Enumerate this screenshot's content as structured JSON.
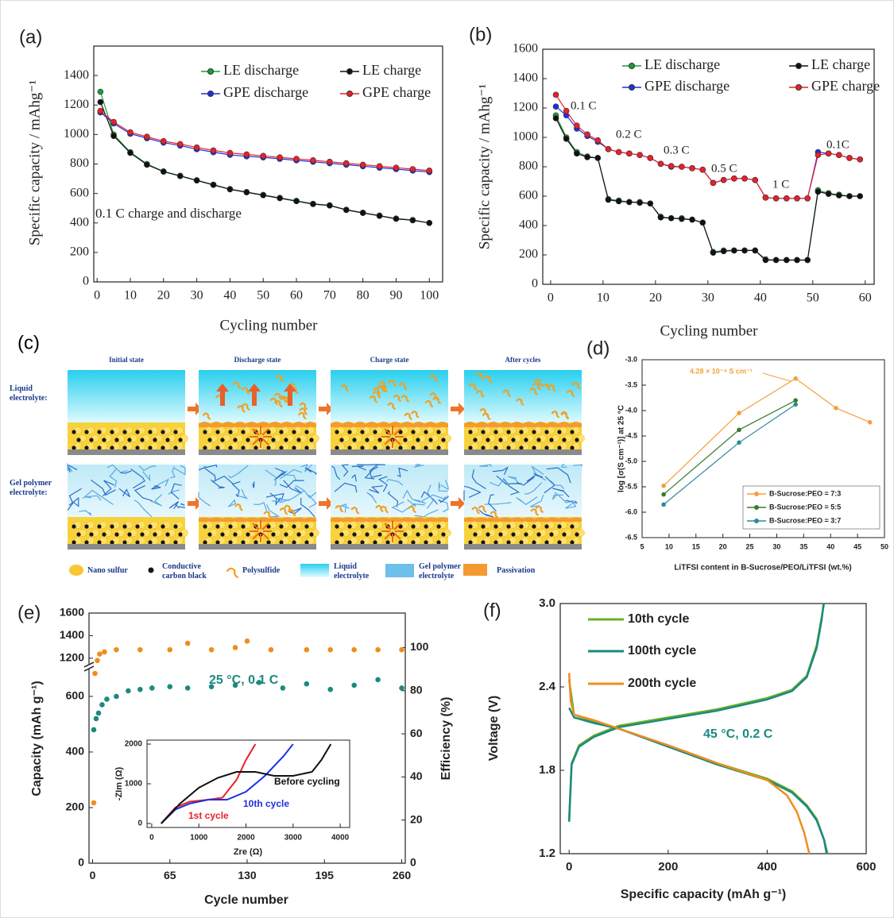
{
  "chart_data": [
    {
      "type": "line",
      "panel_label": "(a)",
      "xlabel": "Cycling number",
      "ylabel": "Specific capacity / mAhg⁻¹",
      "xlim": [
        -1,
        104
      ],
      "xticks": [
        0,
        10,
        20,
        30,
        40,
        50,
        60,
        70,
        80,
        90,
        100
      ],
      "ylim": [
        0,
        1600
      ],
      "yticks": [
        0,
        200,
        400,
        600,
        800,
        1000,
        1200,
        1400
      ],
      "marker": "circle",
      "legend": "upper right",
      "annotations": [
        "0.1 C charge and discharge"
      ],
      "x": [
        1,
        5,
        10,
        15,
        20,
        25,
        30,
        35,
        40,
        45,
        50,
        55,
        60,
        65,
        70,
        75,
        80,
        85,
        90,
        95,
        100
      ],
      "series": [
        {
          "name": "LE discharge",
          "color": "#1a9e3a",
          "values": [
            1290,
            1000,
            880,
            800,
            750,
            720,
            690,
            660,
            630,
            610,
            590,
            570,
            550,
            530,
            520,
            490,
            470,
            450,
            430,
            420,
            400
          ]
        },
        {
          "name": "LE charge",
          "color": "#111111",
          "values": [
            1220,
            990,
            875,
            795,
            748,
            718,
            688,
            658,
            628,
            608,
            588,
            568,
            548,
            528,
            518,
            488,
            468,
            448,
            428,
            418,
            400
          ]
        },
        {
          "name": "GPE discharge",
          "color": "#2030e0",
          "values": [
            1150,
            1075,
            1005,
            975,
            945,
            925,
            900,
            880,
            862,
            852,
            845,
            835,
            825,
            815,
            805,
            795,
            785,
            775,
            765,
            755,
            745
          ]
        },
        {
          "name": "GPE charge",
          "color": "#e8202a",
          "values": [
            1160,
            1085,
            1015,
            985,
            955,
            935,
            912,
            892,
            875,
            865,
            855,
            845,
            835,
            825,
            815,
            805,
            795,
            785,
            775,
            765,
            755
          ]
        }
      ]
    },
    {
      "type": "line",
      "panel_label": "(b)",
      "xlabel": "Cycling number",
      "ylabel": "Specific capacity / mAhg⁻¹",
      "xlim": [
        -1.5,
        61.7
      ],
      "xticks": [
        0,
        10,
        20,
        30,
        40,
        50,
        60
      ],
      "ylim": [
        0,
        1600
      ],
      "yticks": [
        0,
        200,
        400,
        600,
        800,
        1000,
        1200,
        1400,
        1600
      ],
      "marker": "circle",
      "legend": "upper right",
      "annotations": [
        "0.1 C",
        "0.2 C",
        "0.3 C",
        "0.5 C",
        "1 C",
        "0.1C"
      ],
      "x": [
        1,
        3,
        5,
        7,
        9,
        11,
        13,
        15,
        17,
        19,
        21,
        23,
        25,
        27,
        29,
        31,
        33,
        35,
        37,
        39,
        41,
        43,
        45,
        47,
        49,
        51,
        53,
        55,
        57,
        59
      ],
      "series": [
        {
          "name": "LE discharge",
          "color": "#1a9e3a",
          "values": [
            1150,
            1000,
            900,
            870,
            860,
            580,
            570,
            560,
            560,
            550,
            460,
            450,
            450,
            440,
            420,
            220,
            230,
            230,
            230,
            230,
            170,
            165,
            165,
            165,
            165,
            640,
            620,
            610,
            600,
            600
          ]
        },
        {
          "name": "LE charge",
          "color": "#111111",
          "values": [
            1130,
            990,
            890,
            865,
            860,
            575,
            565,
            560,
            555,
            550,
            455,
            450,
            445,
            440,
            420,
            215,
            225,
            230,
            230,
            230,
            165,
            165,
            165,
            165,
            165,
            630,
            615,
            605,
            600,
            600
          ]
        },
        {
          "name": "GPE discharge",
          "color": "#2030e0",
          "values": [
            1210,
            1150,
            1060,
            1010,
            970,
            920,
            900,
            890,
            880,
            860,
            820,
            800,
            800,
            790,
            780,
            690,
            710,
            720,
            720,
            710,
            590,
            585,
            585,
            585,
            585,
            900,
            890,
            880,
            860,
            850
          ]
        },
        {
          "name": "GPE charge",
          "color": "#e8202a",
          "values": [
            1290,
            1180,
            1080,
            1020,
            980,
            920,
            900,
            890,
            880,
            860,
            820,
            805,
            800,
            790,
            780,
            690,
            710,
            720,
            720,
            710,
            590,
            585,
            585,
            585,
            585,
            880,
            890,
            880,
            860,
            850
          ]
        }
      ]
    },
    {
      "type": "line",
      "panel_label": "(d)",
      "xlabel": "LiTFSI content in B-Sucrose/PEO/LiTFSI (wt.%)",
      "ylabel": "log [σ(S cm⁻¹)] at 25 °C",
      "xlim": [
        5,
        50
      ],
      "xticks": [
        5,
        10,
        15,
        20,
        25,
        30,
        35,
        40,
        45,
        50
      ],
      "ylim": [
        -6.5,
        -3.0
      ],
      "yticks": [
        {
          "value": -3,
          "label": "-3.0"
        },
        -3.5,
        {
          "value": -4,
          "label": "-4.0"
        },
        -4.5,
        {
          "value": -5,
          "label": "-5.0"
        },
        -5.5,
        {
          "value": -6,
          "label": "-6.0"
        },
        -6.5
      ],
      "marker": "circle",
      "legend": "lower right",
      "annotations": [
        "4.28 × 10⁻⁴ S cm⁻¹"
      ],
      "series": [
        {
          "name": "B-Sucrose:PEO = 7:3",
          "color": "#f5a03a",
          "x": [
            9,
            23,
            33.5,
            41,
            47.3
          ],
          "values": [
            -5.48,
            -4.05,
            -3.37,
            -3.95,
            -4.23
          ]
        },
        {
          "name": "B-Sucrose:PEO = 5:5",
          "color": "#3a7a2a",
          "x": [
            9,
            23,
            33.5
          ],
          "values": [
            -5.65,
            -4.38,
            -3.8
          ]
        },
        {
          "name": "B-Sucrose:PEO = 3:7",
          "color": "#2a8a9a",
          "x": [
            9,
            23,
            33.5
          ],
          "values": [
            -5.85,
            -4.63,
            -3.88
          ]
        }
      ]
    },
    {
      "type": "scatter",
      "panel_label": "(e)",
      "xlabel": "Cycle number",
      "ylabel": "Capacity (mAh g⁻¹)",
      "y2label": "Efficiency (%)",
      "xlim": [
        -3,
        263
      ],
      "xticks": [
        0,
        65,
        130,
        195,
        260
      ],
      "ylim": [
        0,
        1600
      ],
      "ybreak": [
        700,
        1150
      ],
      "yticks": [
        0,
        200,
        400,
        600,
        1200,
        1400,
        1600
      ],
      "y2lim": [
        0,
        116
      ],
      "y2ticks": [
        0,
        20,
        40,
        60,
        80,
        100
      ],
      "marker": "circle",
      "annotations": [
        "25 °C, 0.1 C"
      ],
      "series": [
        {
          "color": "#1a8a80",
          "x": [
            1,
            3,
            5,
            8,
            12,
            20,
            30,
            40,
            50,
            65,
            80,
            100,
            120,
            140,
            160,
            180,
            200,
            220,
            240,
            260
          ],
          "values": [
            480,
            520,
            540,
            570,
            590,
            600,
            620,
            625,
            630,
            635,
            630,
            635,
            640,
            650,
            630,
            645,
            625,
            640,
            660,
            630
          ]
        },
        {
          "color": "#f08c1e",
          "axis": "y2",
          "x": [
            1,
            2,
            4,
            6,
            10,
            20,
            40,
            65,
            80,
            100,
            120,
            130,
            150,
            180,
            200,
            220,
            240,
            260
          ],
          "values": [
            28,
            88,
            94,
            97,
            98,
            99,
            99,
            99,
            102,
            99,
            100,
            103,
            99,
            99,
            99,
            99,
            99,
            99
          ]
        }
      ]
    },
    {
      "type": "line",
      "xlabel": "Zre (Ω)",
      "ylabel": "-ZIm (Ω)",
      "xlim": [
        -100,
        4200
      ],
      "xticks": [
        0,
        1000,
        2000,
        3000,
        4000
      ],
      "ylim": [
        -100,
        2100
      ],
      "yticks": [
        0,
        1000,
        2000
      ],
      "series": [
        {
          "name": "1st cycle",
          "color": "#e8202a",
          "x": [
            200,
            500,
            800,
            1200,
            1500,
            1800,
            2000,
            2200
          ],
          "values": [
            0,
            400,
            550,
            600,
            650,
            1100,
            1600,
            2000
          ]
        },
        {
          "name": "10th cycle",
          "color": "#2030e0",
          "x": [
            200,
            500,
            800,
            1200,
            1600,
            2000,
            2400,
            2800,
            3000
          ],
          "values": [
            0,
            350,
            500,
            600,
            600,
            800,
            1200,
            1700,
            2000
          ]
        },
        {
          "name": "Before cycling",
          "color": "#111111",
          "x": [
            200,
            600,
            1000,
            1400,
            1800,
            2200,
            2600,
            3000,
            3400,
            3600,
            3800
          ],
          "values": [
            0,
            500,
            900,
            1150,
            1300,
            1300,
            1200,
            1200,
            1300,
            1600,
            2000
          ]
        }
      ]
    },
    {
      "type": "line",
      "panel_label": "(f)",
      "xlabel": "Specific capacity (mAh g⁻¹)",
      "ylabel": "Voltage (V)",
      "xlim": [
        -18,
        600
      ],
      "xticks": [
        0,
        200,
        400,
        600
      ],
      "ylim": [
        1.2,
        3.0
      ],
      "yticks": [
        1.2,
        1.8,
        2.4,
        {
          "value": 3,
          "label": "3.0"
        }
      ],
      "legend": "upper left",
      "annotations": [
        "45 °C, 0.2 C"
      ],
      "series": [
        {
          "name": "10th cycle",
          "color": "#6ab023",
          "x": [
            0,
            10,
            50,
            100,
            200,
            300,
            400,
            450,
            480,
            500,
            515,
            522,
            522,
            0,
            5,
            20,
            50,
            100,
            200,
            300,
            400,
            450,
            480,
            500,
            510,
            515
          ],
          "values": [
            2.45,
            2.2,
            2.15,
            2.1,
            1.98,
            1.85,
            1.74,
            1.65,
            1.55,
            1.45,
            1.3,
            1.2,
            null,
            1.45,
            1.85,
            1.98,
            2.05,
            2.12,
            2.18,
            2.24,
            2.32,
            2.38,
            2.48,
            2.7,
            2.9,
            3.0
          ]
        },
        {
          "name": "100th cycle",
          "color": "#1a8a80",
          "x": [
            0,
            10,
            50,
            100,
            200,
            300,
            400,
            450,
            480,
            500,
            515,
            520,
            520,
            0,
            5,
            20,
            50,
            100,
            200,
            300,
            400,
            450,
            480,
            500,
            510,
            514
          ],
          "values": [
            2.25,
            2.18,
            2.14,
            2.1,
            1.97,
            1.84,
            1.73,
            1.64,
            1.54,
            1.44,
            1.3,
            1.2,
            null,
            1.43,
            1.84,
            1.97,
            2.04,
            2.11,
            2.17,
            2.23,
            2.31,
            2.37,
            2.47,
            2.68,
            2.88,
            3.0
          ]
        },
        {
          "name": "200th cycle",
          "color": "#f08c1e",
          "x": [
            0,
            3,
            10,
            50,
            100,
            200,
            300,
            400,
            440,
            460,
            475,
            485
          ],
          "values": [
            2.5,
            2.3,
            2.2,
            2.16,
            2.1,
            1.98,
            1.85,
            1.73,
            1.62,
            1.5,
            1.35,
            1.2
          ]
        }
      ]
    }
  ],
  "diagram": {
    "panel_label": "(c)",
    "columns": [
      "Initial state",
      "Discharge state",
      "Charge state",
      "After cycles"
    ],
    "rows": [
      "Liquid electrolyte:",
      "Gel polymer electrolyte:"
    ],
    "legend": [
      "Nano sulfur",
      "Conductive carbon black",
      "Polysulfide",
      "Liquid electrolyte",
      "Gel polymer electrolyte",
      "Passivation"
    ]
  }
}
